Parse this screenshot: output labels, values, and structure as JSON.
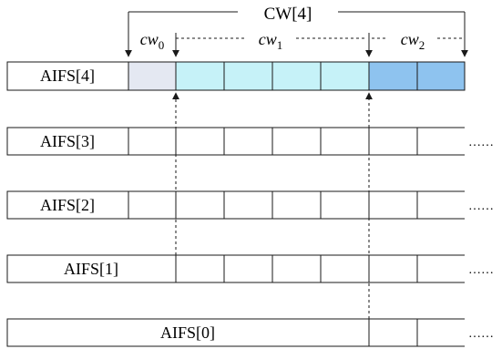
{
  "brace": {
    "cw_total": "CW[4]",
    "cw0_base": "cw",
    "cw0_sub": "0",
    "cw1_base": "cw",
    "cw1_sub": "1",
    "cw2_base": "cw",
    "cw2_sub": "2"
  },
  "rows": [
    {
      "label": "AIFS[4]"
    },
    {
      "label": "AIFS[3]"
    },
    {
      "label": "AIFS[2]"
    },
    {
      "label": "AIFS[1]"
    },
    {
      "label": "AIFS[0]"
    }
  ],
  "ellipsis": "……",
  "colors": {
    "cw0_slot": "#e4e8f2",
    "cw1_slot": "#c6f2f8",
    "cw2_slot": "#8ec3ef",
    "line": "#1a1a1a"
  }
}
